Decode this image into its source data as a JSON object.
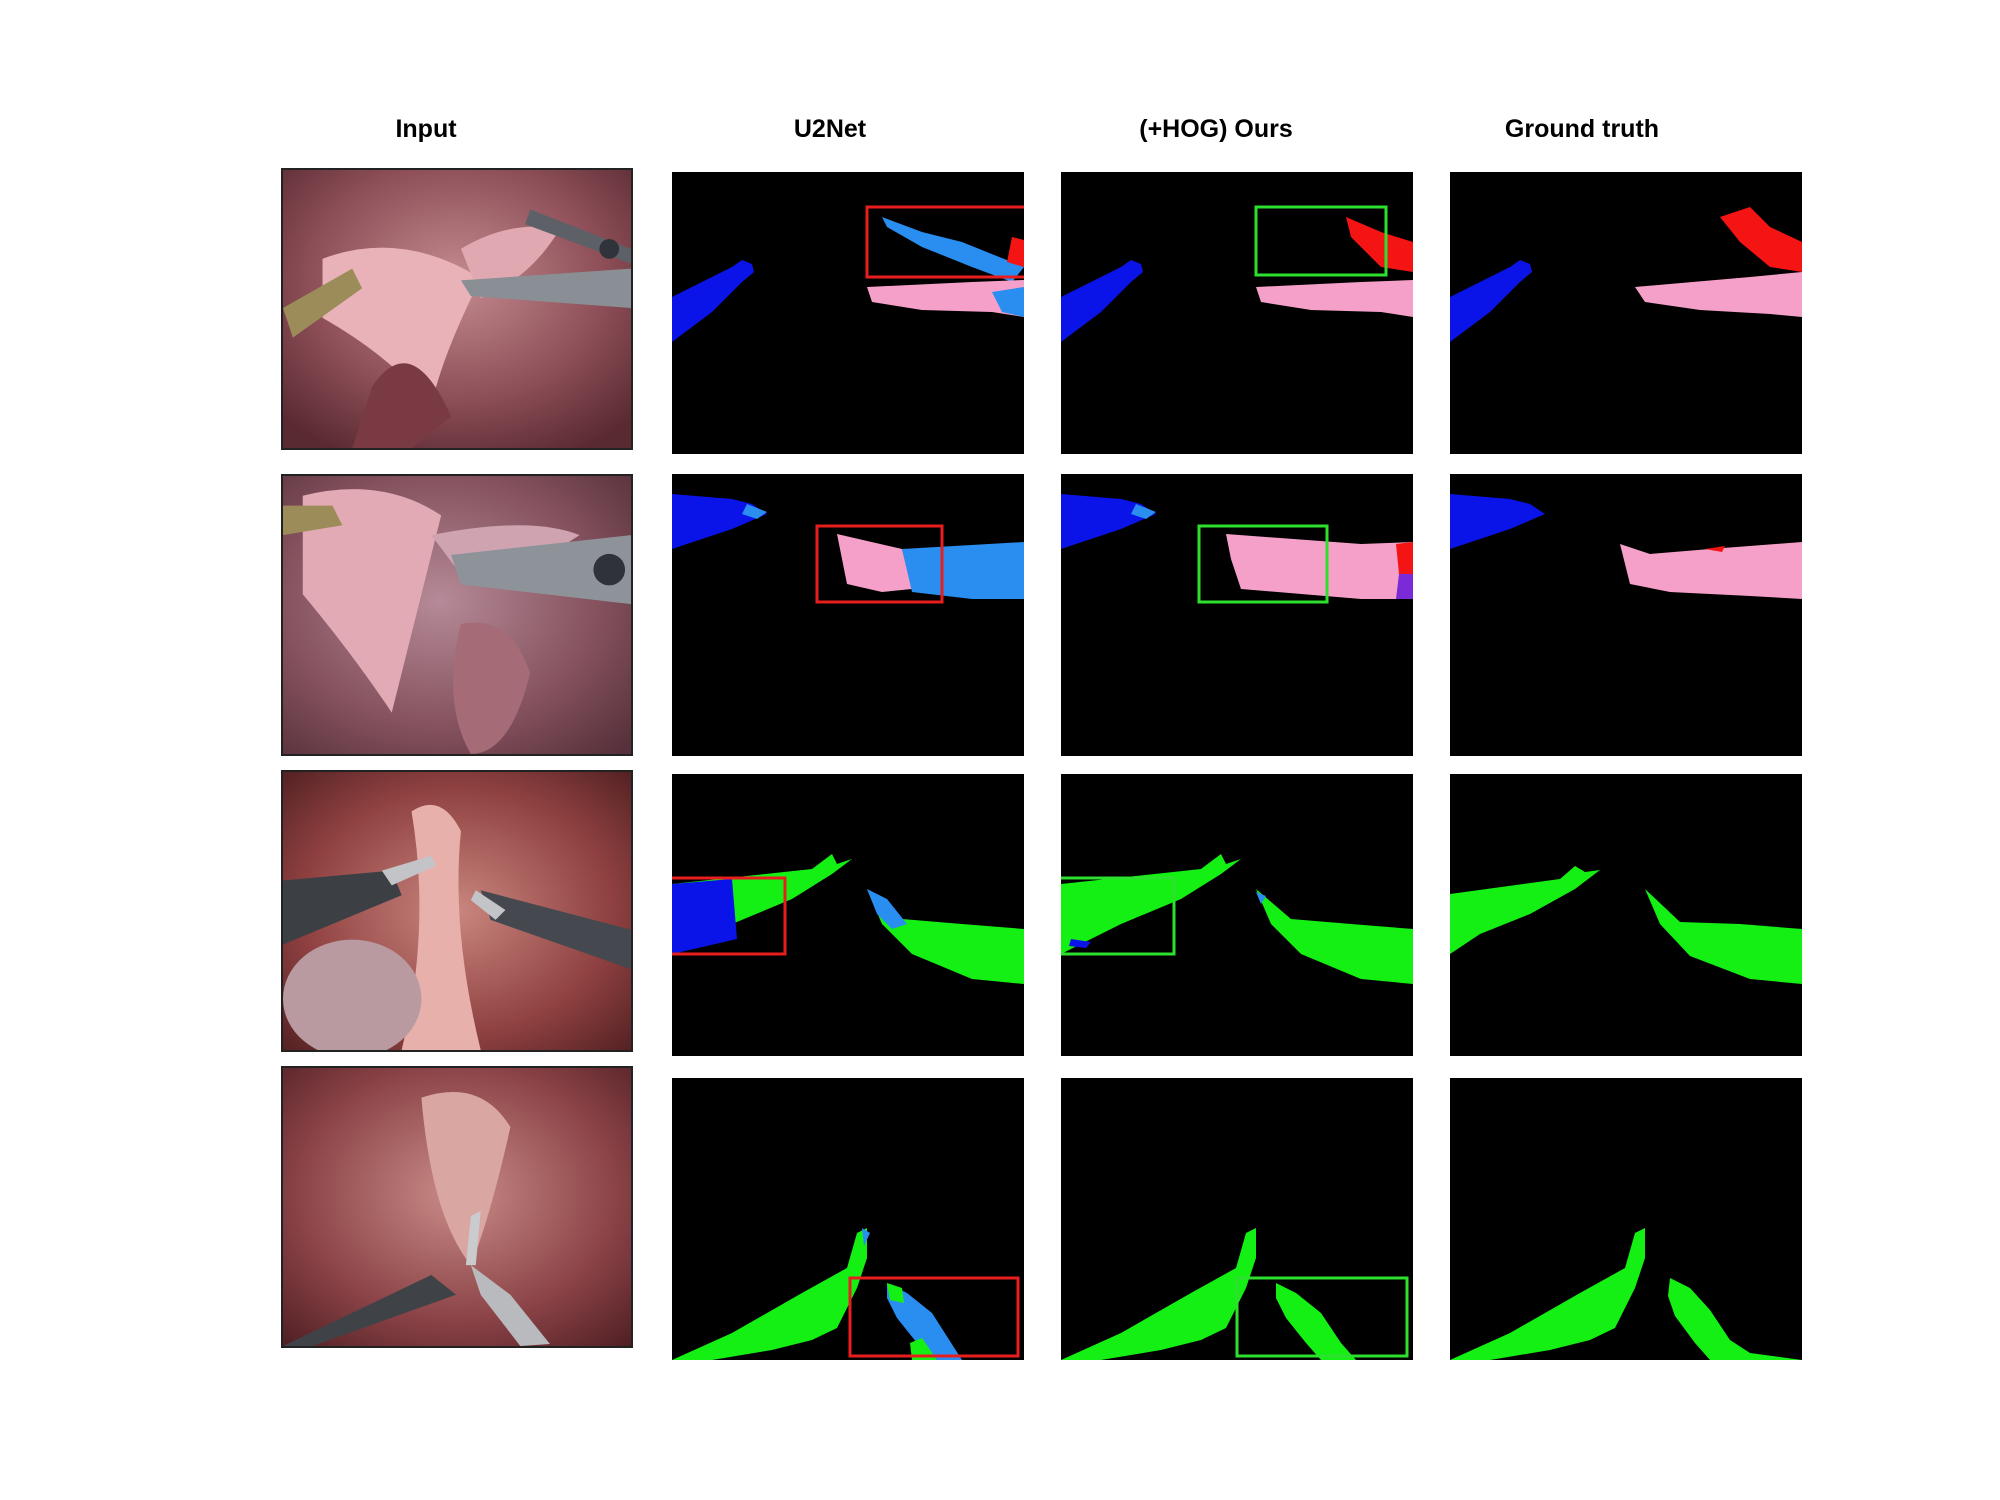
{
  "figure": {
    "columns": [
      {
        "label": "Input"
      },
      {
        "label": "U2Net"
      },
      {
        "label": "(+HOG) Ours"
      },
      {
        "label": "Ground truth"
      }
    ],
    "rows": [
      {
        "input": "surgical-scene-1",
        "u2net_box": "red",
        "ours_box": "green"
      },
      {
        "input": "surgical-scene-2",
        "u2net_box": "red",
        "ours_box": "green"
      },
      {
        "input": "surgical-scene-3",
        "u2net_box": "red",
        "ours_box": "green"
      },
      {
        "input": "surgical-scene-4",
        "u2net_box": "red",
        "ours_box": "green"
      }
    ],
    "class_colors": {
      "blue_instrument": "#0a14e8",
      "light_blue_instrument": "#2a8ef0",
      "pink_instrument": "#f5a0c8",
      "red_instrument": "#f51414",
      "green_instrument": "#14f014",
      "purple_instrument": "#7a2ad6"
    },
    "highlight_colors": {
      "error": "#e81e1e",
      "correct": "#2ee02e"
    }
  }
}
